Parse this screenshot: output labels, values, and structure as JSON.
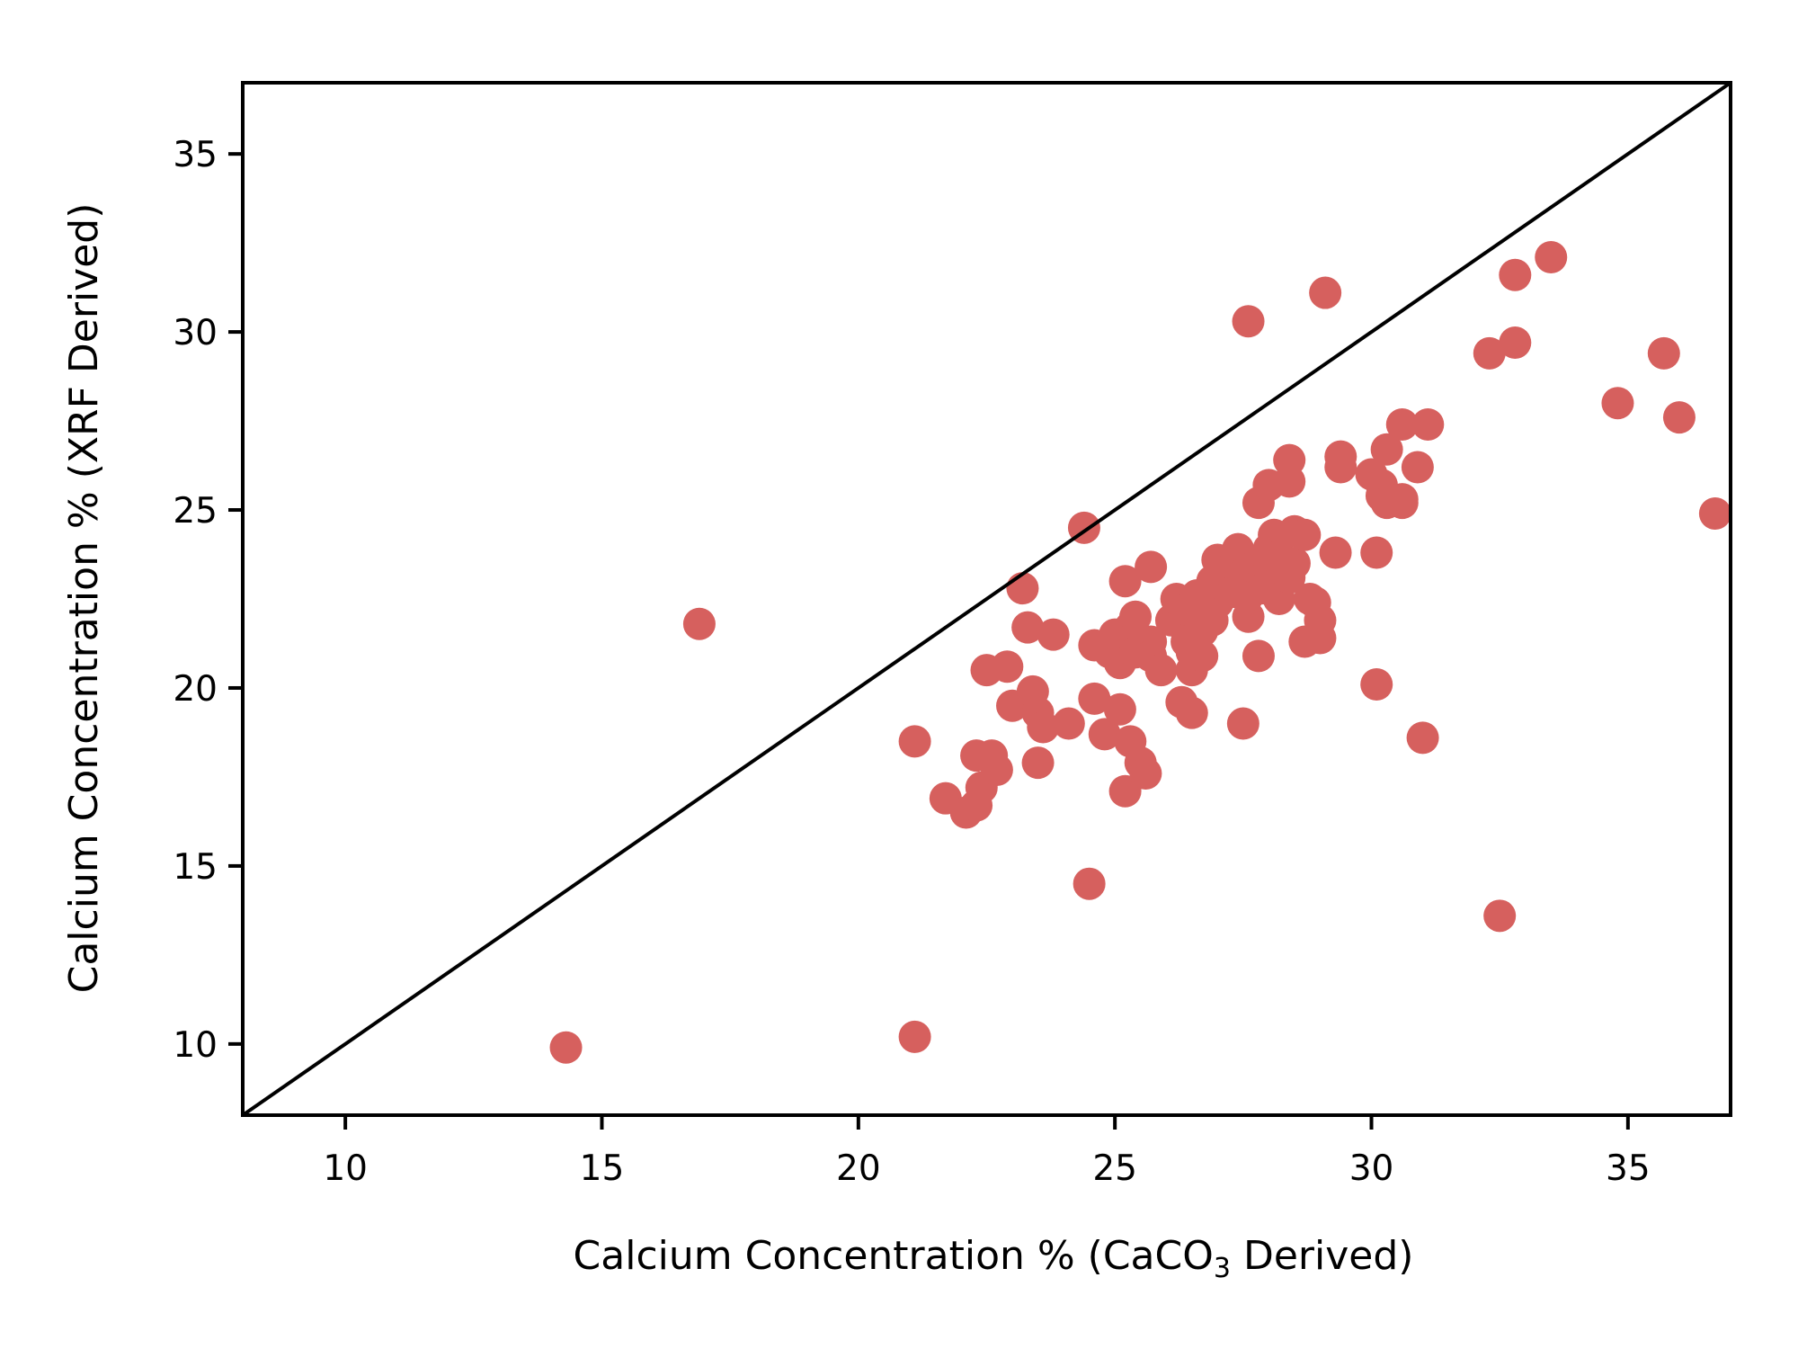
{
  "chart_data": {
    "type": "scatter",
    "title": "",
    "xlabel": {
      "prefix": "Calcium Concentration % (CaCO",
      "sub": "3",
      "suffix": " Derived)"
    },
    "ylabel": "Calcium Concentration % (XRF Derived)",
    "xlim": [
      8,
      37
    ],
    "ylim": [
      8,
      37
    ],
    "xticks": [
      10,
      15,
      20,
      25,
      30,
      35
    ],
    "yticks": [
      10,
      15,
      20,
      25,
      30,
      35
    ],
    "grid": false,
    "legend": "none",
    "reference_line": {
      "from": [
        8,
        8
      ],
      "to": [
        37,
        37
      ],
      "color": "#000000"
    },
    "marker_color": "#d6605e",
    "points": [
      [
        14.3,
        9.9
      ],
      [
        16.9,
        21.8
      ],
      [
        21.1,
        10.2
      ],
      [
        21.1,
        18.5
      ],
      [
        21.7,
        16.9
      ],
      [
        22.1,
        16.5
      ],
      [
        22.3,
        16.7
      ],
      [
        22.4,
        17.2
      ],
      [
        22.3,
        18.1
      ],
      [
        22.6,
        18.1
      ],
      [
        22.7,
        17.7
      ],
      [
        22.5,
        20.5
      ],
      [
        22.9,
        20.6
      ],
      [
        23.0,
        19.5
      ],
      [
        23.2,
        22.8
      ],
      [
        23.3,
        21.7
      ],
      [
        23.4,
        19.9
      ],
      [
        23.5,
        19.3
      ],
      [
        23.5,
        17.9
      ],
      [
        23.6,
        18.9
      ],
      [
        23.8,
        21.5
      ],
      [
        24.1,
        19.0
      ],
      [
        24.4,
        24.5
      ],
      [
        24.5,
        14.5
      ],
      [
        24.6,
        19.7
      ],
      [
        24.6,
        21.2
      ],
      [
        24.8,
        18.7
      ],
      [
        24.9,
        21.0
      ],
      [
        25.0,
        21.5
      ],
      [
        25.1,
        20.7
      ],
      [
        25.1,
        19.4
      ],
      [
        25.2,
        17.1
      ],
      [
        25.2,
        23.0
      ],
      [
        25.3,
        18.5
      ],
      [
        25.3,
        21.7
      ],
      [
        25.4,
        22.0
      ],
      [
        25.4,
        21.0
      ],
      [
        25.5,
        17.9
      ],
      [
        25.6,
        17.6
      ],
      [
        25.7,
        21.3
      ],
      [
        25.7,
        20.9
      ],
      [
        25.7,
        23.4
      ],
      [
        25.9,
        20.5
      ],
      [
        26.1,
        21.9
      ],
      [
        26.2,
        22.5
      ],
      [
        26.3,
        19.6
      ],
      [
        26.4,
        21.3
      ],
      [
        26.4,
        22.2
      ],
      [
        26.5,
        19.3
      ],
      [
        26.5,
        20.5
      ],
      [
        26.5,
        21.0
      ],
      [
        26.6,
        22.6
      ],
      [
        26.7,
        20.9
      ],
      [
        26.7,
        21.6
      ],
      [
        26.8,
        22.4
      ],
      [
        26.9,
        21.9
      ],
      [
        26.9,
        23.0
      ],
      [
        27.0,
        22.4
      ],
      [
        27.0,
        23.6
      ],
      [
        27.1,
        22.9
      ],
      [
        27.2,
        23.3
      ],
      [
        27.3,
        22.7
      ],
      [
        27.4,
        23.9
      ],
      [
        27.5,
        19.0
      ],
      [
        27.5,
        23.2
      ],
      [
        27.6,
        22.0
      ],
      [
        27.6,
        30.3
      ],
      [
        27.6,
        22.6
      ],
      [
        27.7,
        23.4
      ],
      [
        27.8,
        20.9
      ],
      [
        27.8,
        25.2
      ],
      [
        27.9,
        23.1
      ],
      [
        27.9,
        22.8
      ],
      [
        28.0,
        25.7
      ],
      [
        28.0,
        23.9
      ],
      [
        28.1,
        24.3
      ],
      [
        28.1,
        22.9
      ],
      [
        28.2,
        22.5
      ],
      [
        28.2,
        23.7
      ],
      [
        28.3,
        23.3
      ],
      [
        28.4,
        23.1
      ],
      [
        28.4,
        26.4
      ],
      [
        28.4,
        25.8
      ],
      [
        28.5,
        23.5
      ],
      [
        28.5,
        24.4
      ],
      [
        28.7,
        24.3
      ],
      [
        28.7,
        21.3
      ],
      [
        28.8,
        22.5
      ],
      [
        28.9,
        22.4
      ],
      [
        29.0,
        21.9
      ],
      [
        29.0,
        21.4
      ],
      [
        29.1,
        31.1
      ],
      [
        29.3,
        23.8
      ],
      [
        29.4,
        26.2
      ],
      [
        29.4,
        26.5
      ],
      [
        30.0,
        26.0
      ],
      [
        30.1,
        23.8
      ],
      [
        30.1,
        20.1
      ],
      [
        30.2,
        25.4
      ],
      [
        30.2,
        25.7
      ],
      [
        30.3,
        26.7
      ],
      [
        30.3,
        25.2
      ],
      [
        30.6,
        25.3
      ],
      [
        30.6,
        25.2
      ],
      [
        30.6,
        27.4
      ],
      [
        30.9,
        26.2
      ],
      [
        31.0,
        18.6
      ],
      [
        31.1,
        27.4
      ],
      [
        32.3,
        29.4
      ],
      [
        32.5,
        13.6
      ],
      [
        32.8,
        31.6
      ],
      [
        32.8,
        29.7
      ],
      [
        33.5,
        32.1
      ],
      [
        34.8,
        28.0
      ],
      [
        35.7,
        29.4
      ],
      [
        36.0,
        27.6
      ],
      [
        36.7,
        24.9
      ]
    ]
  }
}
